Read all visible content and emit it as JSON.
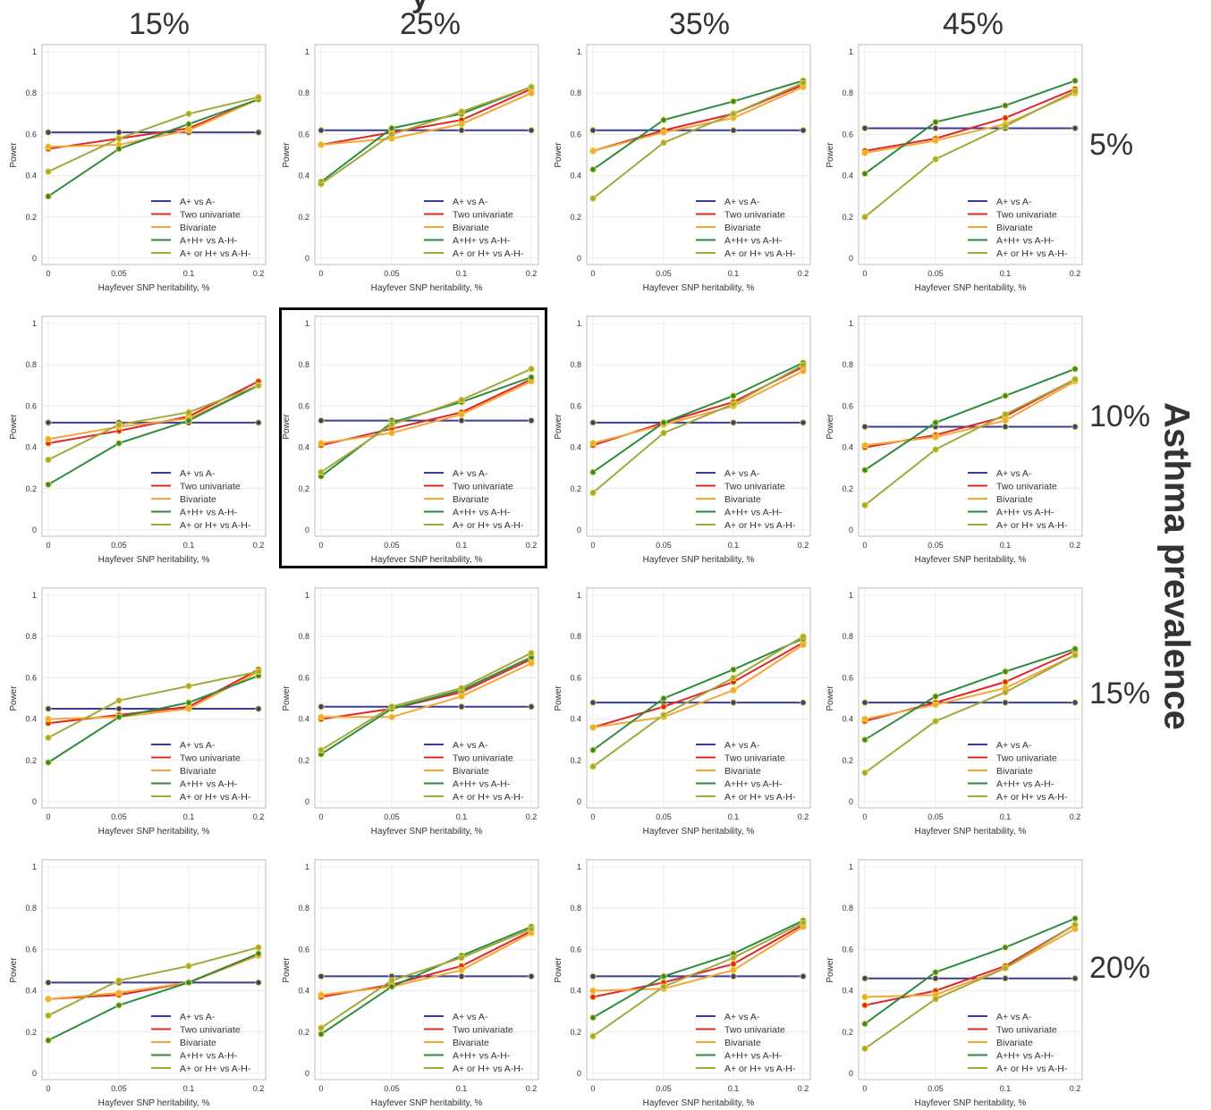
{
  "figure": {
    "top_title": "y",
    "col_labels": [
      "15%",
      "25%",
      "35%",
      "45%"
    ],
    "row_labels": [
      "5%",
      "10%",
      "15%",
      "20%"
    ],
    "row_title": "Asthma prevalence",
    "highlight_panel": {
      "row": 1,
      "col": 1
    }
  },
  "colors": {
    "A+ vs A-": "#3a3d8f",
    "Two univariate": "#e0252b",
    "Bivariate": "#f4a637",
    "A+H+ vs A-H-": "#2e8b3e",
    "A+ or H+ vs A-H-": "#a3a83a"
  },
  "chart_data": {
    "type": "line",
    "x": [
      0,
      0.05,
      0.1,
      0.2
    ],
    "x_tick_labels": [
      "0",
      "0.05",
      "0.1",
      "0.2"
    ],
    "y_ticks": [
      0,
      0.2,
      0.4,
      0.6,
      0.8,
      1
    ],
    "ylim": [
      0,
      1
    ],
    "xlabel": "Hayfever SNP heritability, %",
    "ylabel": "Power",
    "legend": [
      "A+ vs A-",
      "Two univariate",
      "Bivariate",
      "A+H+ vs A-H-",
      "A+ or H+ vs A-H-"
    ],
    "legend_placement": "bottom-right",
    "panels": [
      [
        {
          "series": [
            [
              0.61,
              0.61,
              0.61,
              0.61
            ],
            [
              0.53,
              0.58,
              0.63,
              0.77
            ],
            [
              0.54,
              0.55,
              0.62,
              0.77
            ],
            [
              0.3,
              0.53,
              0.65,
              0.77
            ],
            [
              0.42,
              0.58,
              0.7,
              0.78
            ]
          ]
        },
        {
          "series": [
            [
              0.62,
              0.62,
              0.62,
              0.62
            ],
            [
              0.55,
              0.61,
              0.67,
              0.82
            ],
            [
              0.55,
              0.58,
              0.65,
              0.8
            ],
            [
              0.37,
              0.63,
              0.7,
              0.83
            ],
            [
              0.36,
              0.6,
              0.71,
              0.83
            ]
          ]
        },
        {
          "series": [
            [
              0.62,
              0.62,
              0.62,
              0.62
            ],
            [
              0.52,
              0.62,
              0.7,
              0.84
            ],
            [
              0.52,
              0.61,
              0.68,
              0.83
            ],
            [
              0.43,
              0.67,
              0.76,
              0.86
            ],
            [
              0.29,
              0.56,
              0.7,
              0.85
            ]
          ]
        },
        {
          "series": [
            [
              0.63,
              0.63,
              0.63,
              0.63
            ],
            [
              0.52,
              0.58,
              0.68,
              0.82
            ],
            [
              0.51,
              0.57,
              0.65,
              0.8
            ],
            [
              0.41,
              0.66,
              0.74,
              0.86
            ],
            [
              0.2,
              0.48,
              0.64,
              0.81
            ]
          ]
        }
      ],
      [
        {
          "series": [
            [
              0.52,
              0.52,
              0.52,
              0.52
            ],
            [
              0.42,
              0.48,
              0.55,
              0.72
            ],
            [
              0.44,
              0.5,
              0.54,
              0.7
            ],
            [
              0.22,
              0.42,
              0.53,
              0.7
            ],
            [
              0.34,
              0.51,
              0.57,
              0.7
            ]
          ]
        },
        {
          "series": [
            [
              0.53,
              0.53,
              0.53,
              0.53
            ],
            [
              0.41,
              0.49,
              0.57,
              0.73
            ],
            [
              0.42,
              0.47,
              0.56,
              0.72
            ],
            [
              0.26,
              0.52,
              0.62,
              0.74
            ],
            [
              0.28,
              0.51,
              0.63,
              0.78
            ]
          ]
        },
        {
          "series": [
            [
              0.52,
              0.52,
              0.52,
              0.52
            ],
            [
              0.41,
              0.52,
              0.62,
              0.79
            ],
            [
              0.42,
              0.51,
              0.6,
              0.77
            ],
            [
              0.28,
              0.52,
              0.65,
              0.81
            ],
            [
              0.18,
              0.47,
              0.61,
              0.8
            ]
          ]
        },
        {
          "series": [
            [
              0.5,
              0.5,
              0.5,
              0.5
            ],
            [
              0.4,
              0.46,
              0.55,
              0.73
            ],
            [
              0.41,
              0.45,
              0.53,
              0.72
            ],
            [
              0.29,
              0.52,
              0.65,
              0.78
            ],
            [
              0.12,
              0.39,
              0.56,
              0.73
            ]
          ]
        }
      ],
      [
        {
          "series": [
            [
              0.45,
              0.45,
              0.45,
              0.45
            ],
            [
              0.38,
              0.42,
              0.46,
              0.64
            ],
            [
              0.4,
              0.41,
              0.45,
              0.63
            ],
            [
              0.19,
              0.41,
              0.48,
              0.61
            ],
            [
              0.31,
              0.49,
              0.56,
              0.63
            ]
          ]
        },
        {
          "series": [
            [
              0.46,
              0.46,
              0.46,
              0.46
            ],
            [
              0.4,
              0.45,
              0.53,
              0.69
            ],
            [
              0.41,
              0.41,
              0.51,
              0.67
            ],
            [
              0.23,
              0.45,
              0.54,
              0.7
            ],
            [
              0.25,
              0.46,
              0.55,
              0.72
            ]
          ]
        },
        {
          "series": [
            [
              0.48,
              0.48,
              0.48,
              0.48
            ],
            [
              0.36,
              0.46,
              0.58,
              0.77
            ],
            [
              0.36,
              0.41,
              0.54,
              0.76
            ],
            [
              0.25,
              0.5,
              0.64,
              0.79
            ],
            [
              0.17,
              0.42,
              0.6,
              0.8
            ]
          ]
        },
        {
          "series": [
            [
              0.48,
              0.48,
              0.48,
              0.48
            ],
            [
              0.39,
              0.48,
              0.58,
              0.73
            ],
            [
              0.4,
              0.47,
              0.55,
              0.71
            ],
            [
              0.3,
              0.51,
              0.63,
              0.74
            ],
            [
              0.14,
              0.39,
              0.53,
              0.71
            ]
          ]
        }
      ],
      [
        {
          "series": [
            [
              0.44,
              0.44,
              0.44,
              0.44
            ],
            [
              0.36,
              0.38,
              0.44,
              0.58
            ],
            [
              0.36,
              0.39,
              0.44,
              0.57
            ],
            [
              0.16,
              0.33,
              0.44,
              0.58
            ],
            [
              0.28,
              0.45,
              0.52,
              0.61
            ]
          ]
        },
        {
          "series": [
            [
              0.47,
              0.47,
              0.47,
              0.47
            ],
            [
              0.37,
              0.43,
              0.52,
              0.69
            ],
            [
              0.38,
              0.42,
              0.5,
              0.68
            ],
            [
              0.19,
              0.42,
              0.57,
              0.71
            ],
            [
              0.22,
              0.45,
              0.56,
              0.7
            ]
          ]
        },
        {
          "series": [
            [
              0.47,
              0.47,
              0.47,
              0.47
            ],
            [
              0.37,
              0.44,
              0.53,
              0.72
            ],
            [
              0.4,
              0.41,
              0.5,
              0.71
            ],
            [
              0.27,
              0.47,
              0.58,
              0.74
            ],
            [
              0.18,
              0.42,
              0.56,
              0.73
            ]
          ]
        },
        {
          "series": [
            [
              0.46,
              0.46,
              0.46,
              0.46
            ],
            [
              0.33,
              0.4,
              0.52,
              0.72
            ],
            [
              0.37,
              0.38,
              0.51,
              0.7
            ],
            [
              0.24,
              0.49,
              0.61,
              0.75
            ],
            [
              0.12,
              0.36,
              0.51,
              0.72
            ]
          ]
        }
      ]
    ]
  }
}
